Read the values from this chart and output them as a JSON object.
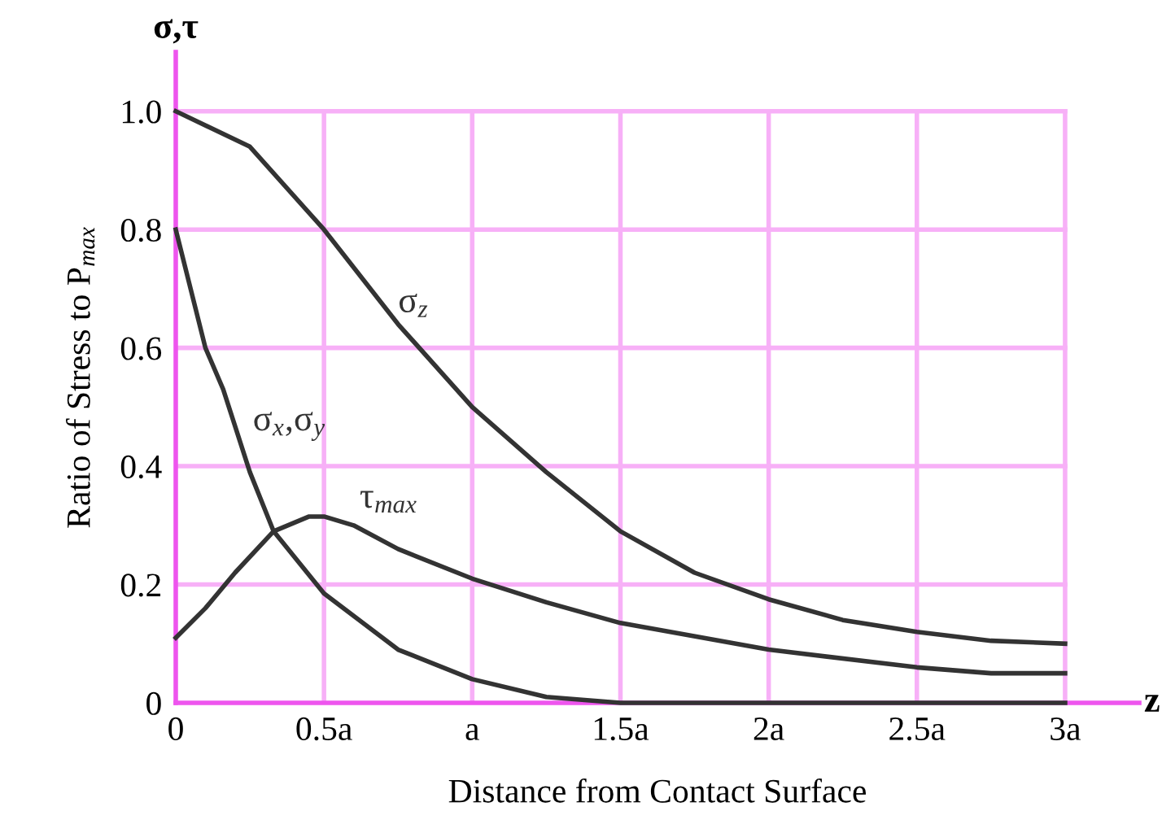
{
  "chart_data": {
    "type": "line",
    "xlabel": "Distance from Contact Surface",
    "ylabel": "Ratio of Stress to P$_{max}$",
    "annotations": [
      "σ,τ",
      "z"
    ],
    "xlim": [
      0,
      3.25
    ],
    "ylim": [
      0,
      1.1
    ],
    "xticks": [
      0,
      {
        "value": 0.5,
        "label": "0.5a"
      },
      {
        "value": 1,
        "label": "a"
      },
      {
        "value": 1.5,
        "label": "1.5a"
      },
      {
        "value": 2,
        "label": "2a"
      },
      {
        "value": 2.5,
        "label": "2.5a"
      },
      {
        "value": 3,
        "label": "3a"
      }
    ],
    "yticks": [
      0,
      0.2,
      0.4,
      0.6,
      0.8,
      {
        "value": 1.0,
        "label": "1.0"
      }
    ],
    "grid": true,
    "legend": false,
    "marker": "none",
    "line_style": "solid",
    "series": [
      {
        "name": "σ$_{z}$",
        "color": "#333333",
        "x": [
          0,
          0.25,
          0.5,
          0.75,
          1,
          1.25,
          1.5,
          1.75,
          2,
          2.25,
          2.5,
          2.75,
          3
        ],
        "values": [
          1.0,
          0.94,
          0.8,
          0.64,
          0.5,
          0.39,
          0.29,
          0.22,
          0.175,
          0.14,
          0.12,
          0.105,
          0.1
        ]
      },
      {
        "name": "σ$_{x}$,σ$_{y}$",
        "color": "#333333",
        "x": [
          0,
          0.1,
          0.16,
          0.25,
          0.33,
          0.5,
          0.75,
          1,
          1.25,
          1.5,
          2,
          2.5,
          3
        ],
        "values": [
          0.8,
          0.6,
          0.53,
          0.39,
          0.29,
          0.185,
          0.09,
          0.04,
          0.01,
          0.0,
          0.0,
          0.0,
          0.0
        ]
      },
      {
        "name": "τ$_{max}$",
        "color": "#333333",
        "x": [
          0,
          0.1,
          0.2,
          0.33,
          0.45,
          0.5,
          0.6,
          0.75,
          1,
          1.25,
          1.5,
          2,
          2.5,
          2.75,
          3
        ],
        "values": [
          0.11,
          0.16,
          0.22,
          0.29,
          0.315,
          0.315,
          0.3,
          0.26,
          0.21,
          0.17,
          0.135,
          0.09,
          0.06,
          0.05,
          0.05
        ]
      }
    ]
  }
}
